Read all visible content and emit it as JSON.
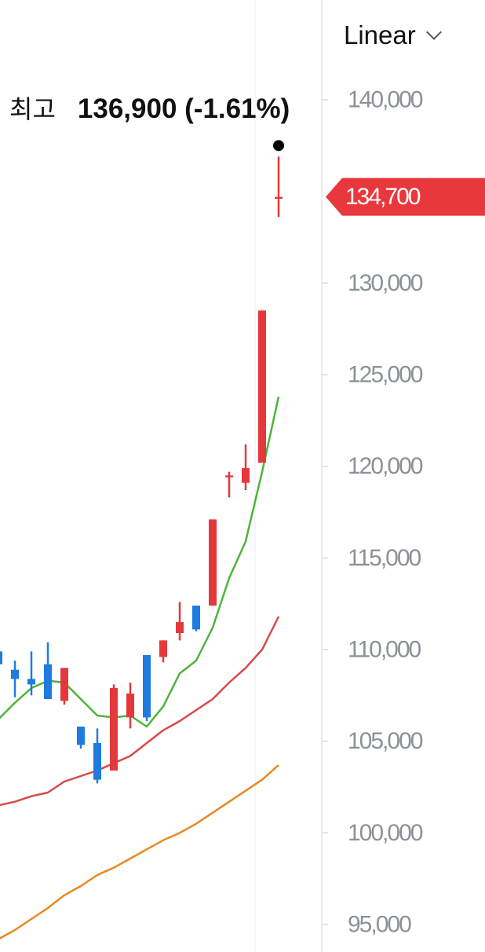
{
  "header": {
    "scale_mode": "Linear",
    "high_label": "최고",
    "high_value": "136,900 (-1.61%)"
  },
  "current_price_label": "134,700",
  "colors": {
    "up": "#e5383b",
    "down": "#1e7be0",
    "ma_short": "#4db43a",
    "ma_mid": "#d94848",
    "ma_long": "#e8891e",
    "price_tag": "#e8383d"
  },
  "chart_data": {
    "type": "candlestick",
    "ylim": [
      95000,
      140000
    ],
    "y_ticks": [
      "140,000",
      "130,000",
      "125,000",
      "120,000",
      "115,000",
      "110,000",
      "105,000",
      "100,000",
      "95,000"
    ],
    "y_tick_values": [
      140000,
      130000,
      125000,
      120000,
      115000,
      110000,
      105000,
      100000,
      95000
    ],
    "grid": false,
    "candles": [
      {
        "o": 109900,
        "c": 109200,
        "h": 110100,
        "l": 108600
      },
      {
        "o": 108900,
        "c": 108400,
        "h": 109400,
        "l": 107400
      },
      {
        "o": 108400,
        "c": 108100,
        "h": 109900,
        "l": 107500
      },
      {
        "o": 109200,
        "c": 107300,
        "h": 110400,
        "l": 107300
      },
      {
        "o": 107200,
        "c": 109000,
        "h": 109000,
        "l": 107000
      },
      {
        "o": 105800,
        "c": 104800,
        "h": 105800,
        "l": 104600
      },
      {
        "o": 104900,
        "c": 102900,
        "h": 105700,
        "l": 102700
      },
      {
        "o": 103400,
        "c": 107900,
        "h": 108100,
        "l": 103400
      },
      {
        "o": 106300,
        "c": 107600,
        "h": 108200,
        "l": 105700
      },
      {
        "o": 109700,
        "c": 106300,
        "h": 109700,
        "l": 106100
      },
      {
        "o": 109600,
        "c": 110500,
        "h": 110500,
        "l": 109300
      },
      {
        "o": 110900,
        "c": 111500,
        "h": 112600,
        "l": 110500
      },
      {
        "o": 112400,
        "c": 111100,
        "h": 112400,
        "l": 111000
      },
      {
        "o": 112400,
        "c": 117100,
        "h": 117100,
        "l": 112400
      },
      {
        "o": 119400,
        "c": 119500,
        "h": 119700,
        "l": 118300
      },
      {
        "o": 119100,
        "c": 119900,
        "h": 121200,
        "l": 118700
      },
      {
        "o": 120200,
        "c": 128500,
        "h": 128500,
        "l": 120200
      },
      {
        "o": 134600,
        "c": 134700,
        "h": 136900,
        "l": 133600
      }
    ],
    "moving_averages": [
      {
        "color_key": "ma_short",
        "values": [
          106200,
          107100,
          107900,
          108300,
          108200,
          107300,
          106400,
          106300,
          106400,
          105800,
          106900,
          108700,
          109400,
          111200,
          113900,
          115900,
          119700,
          123800
        ]
      },
      {
        "color_key": "ma_mid",
        "values": [
          101500,
          101700,
          102000,
          102200,
          102800,
          103100,
          103400,
          103800,
          104200,
          104900,
          105600,
          106100,
          106700,
          107300,
          108200,
          109000,
          110000,
          111800
        ]
      },
      {
        "color_key": "ma_long",
        "values": [
          94200,
          94700,
          95300,
          95900,
          96600,
          97100,
          97700,
          98100,
          98600,
          99100,
          99600,
          100000,
          100500,
          101100,
          101700,
          102300,
          102900,
          103700
        ]
      }
    ],
    "current_price": 134700,
    "high_marker": 136900
  }
}
